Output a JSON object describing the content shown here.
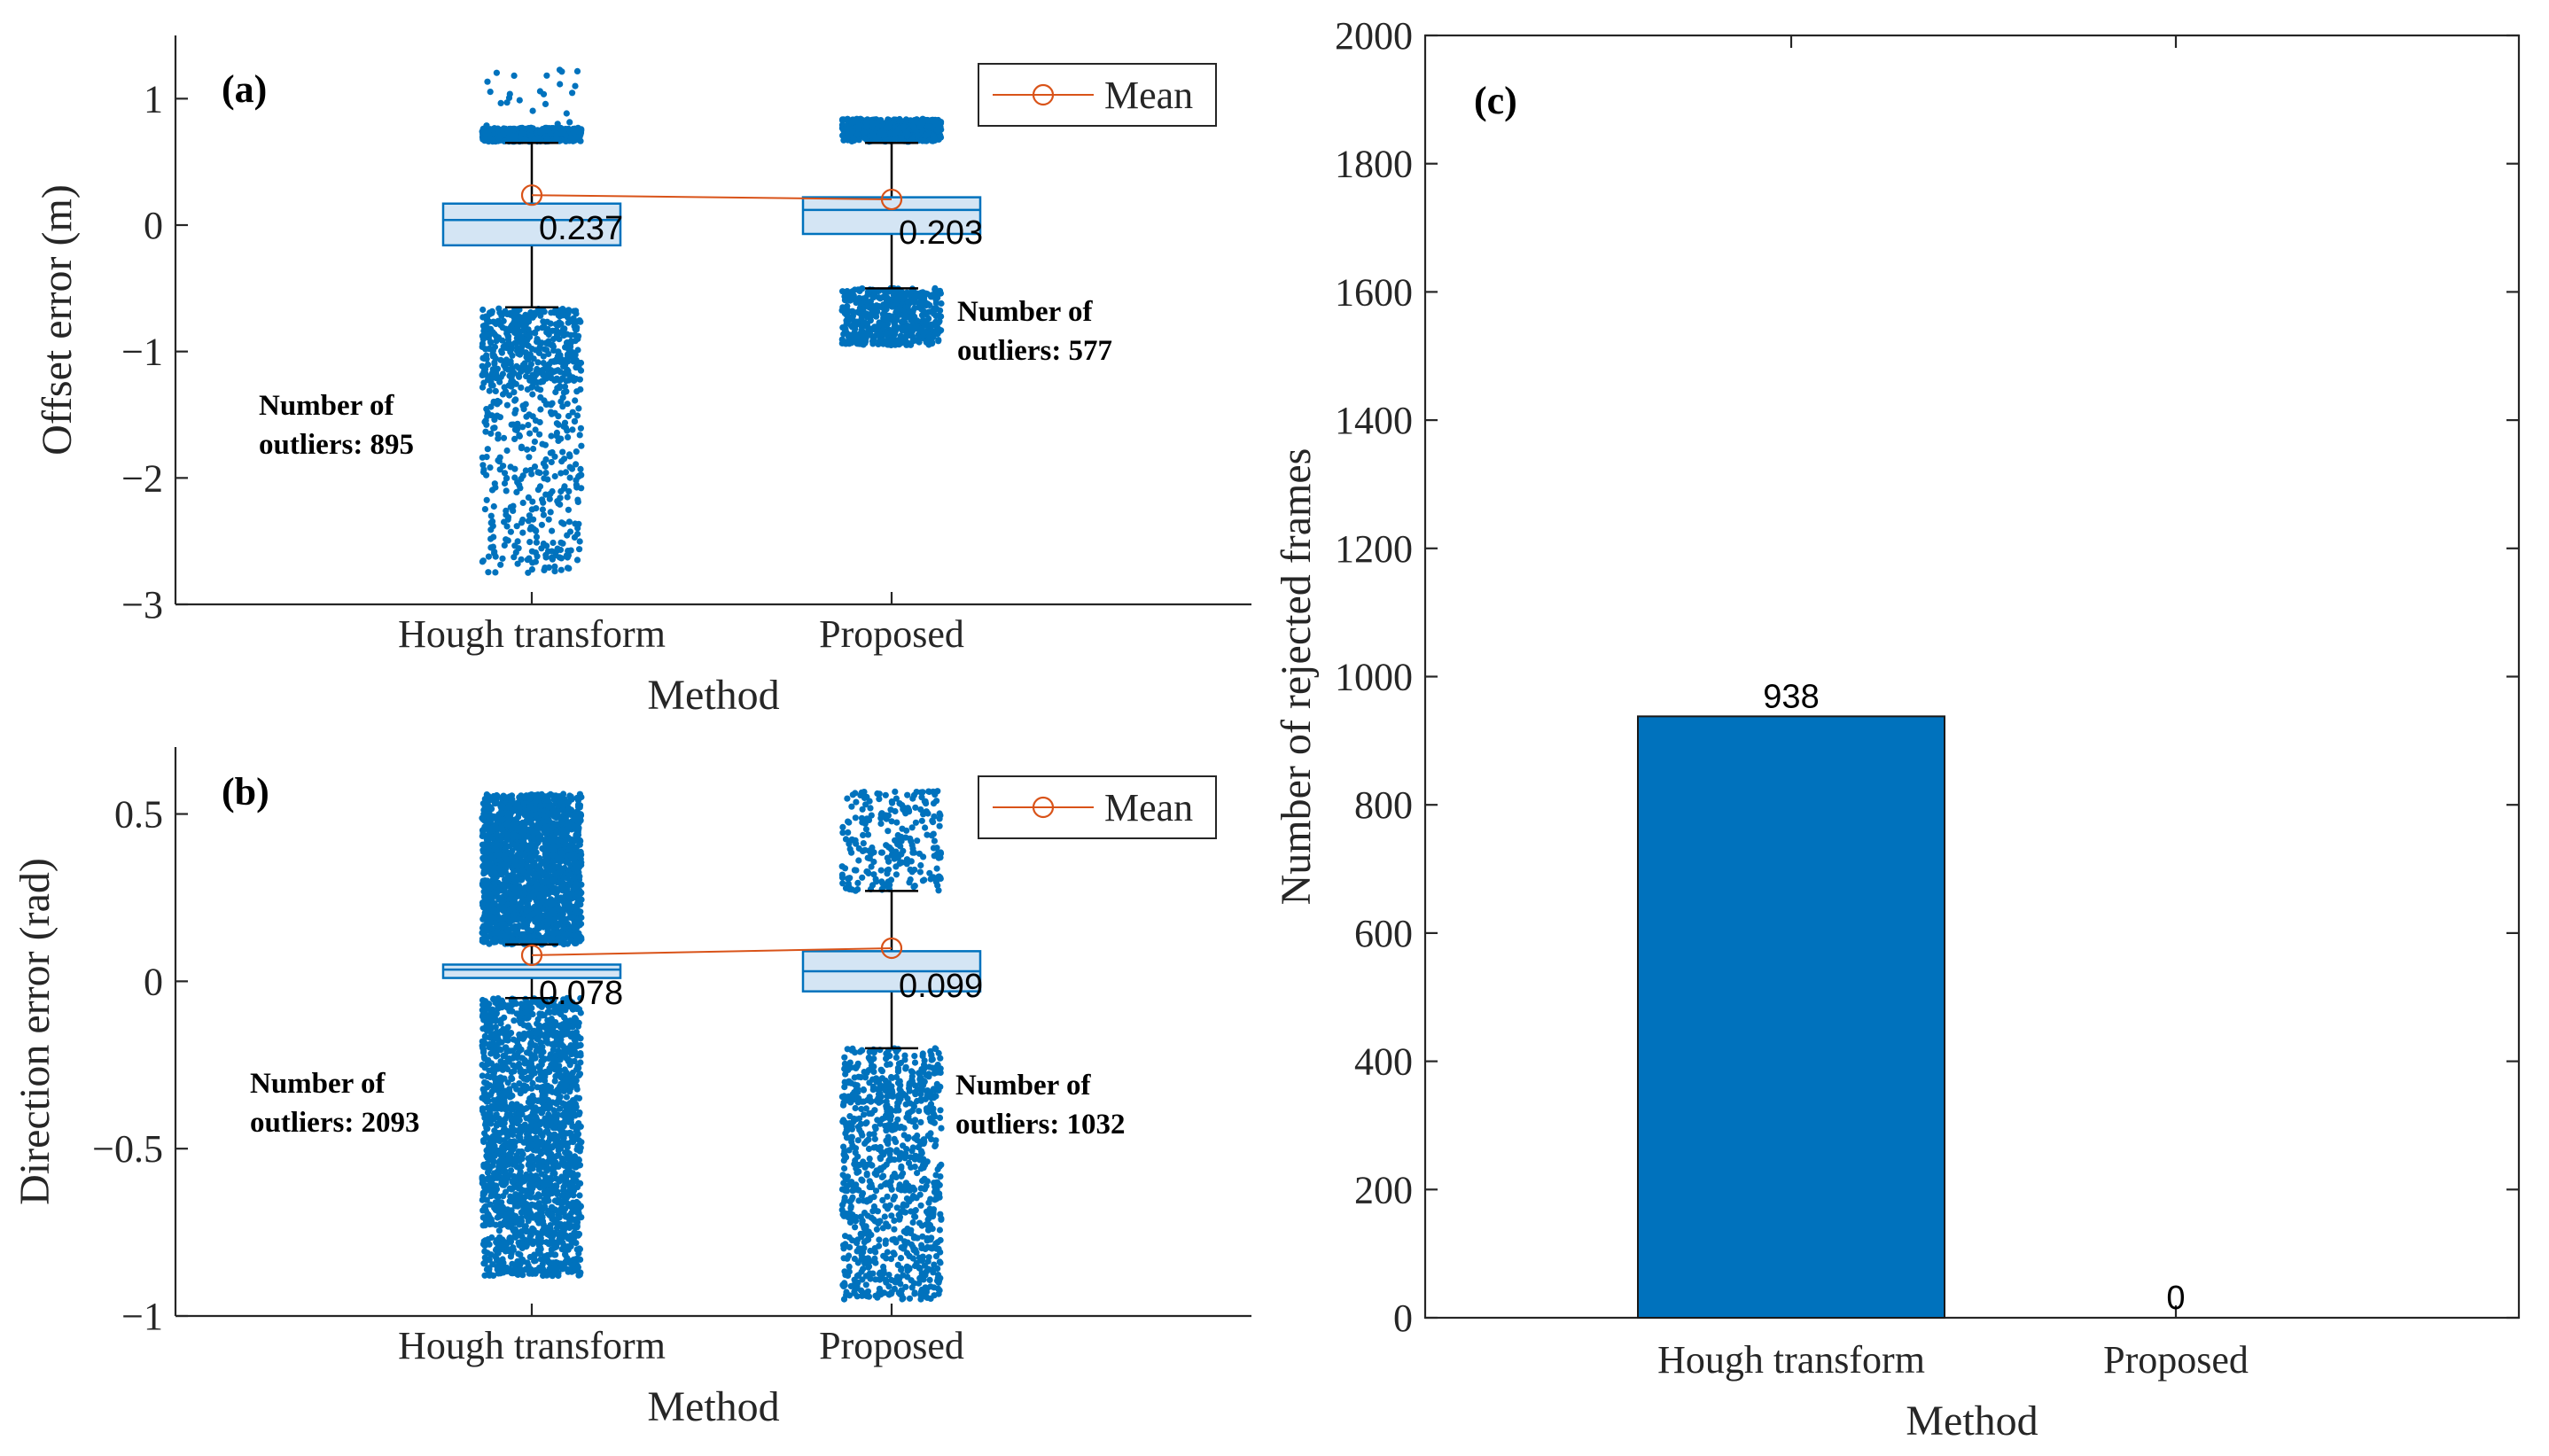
{
  "colors": {
    "point": "#0072BD",
    "box_fill": "#CFE2F3",
    "box_edge": "#0072BD",
    "mean": "#D95319",
    "bar": "#0072BD",
    "axis": "#262626"
  },
  "chart_data": [
    {
      "type": "box",
      "panel_label": "(a)",
      "title": "",
      "xlabel": "Method",
      "ylabel": "Offset error (m)",
      "categories": [
        "Hough transform",
        "Proposed"
      ],
      "ylim": [
        -3,
        1.5
      ],
      "yticks": [
        -3,
        -2,
        -1,
        0,
        1
      ],
      "ytick_labels": [
        "−3",
        "−2",
        "−1",
        "0",
        "1"
      ],
      "legend": {
        "label": "Mean",
        "position": "top-right"
      },
      "series": [
        {
          "name": "Hough transform",
          "box": {
            "lower_whisker": -0.65,
            "q1": -0.16,
            "median": 0.04,
            "q3": 0.17,
            "upper_whisker": 0.65
          },
          "mean": 0.237,
          "mean_label": "0.237",
          "outlier_count": 895,
          "outlier_note": [
            "Number of",
            "outliers: 895"
          ],
          "outlier_ranges": [
            [
              0.66,
              0.77,
              0.55
            ],
            [
              0.78,
              1.23,
              0.03
            ],
            [
              -1.25,
              -0.66,
              0.55
            ],
            [
              -2.75,
              -1.25,
              0.42
            ]
          ]
        },
        {
          "name": "Proposed",
          "box": {
            "lower_whisker": -0.5,
            "q1": -0.07,
            "median": 0.12,
            "q3": 0.22,
            "upper_whisker": 0.65
          },
          "mean": 0.203,
          "mean_label": "0.203",
          "outlier_count": 577,
          "outlier_note": [
            "Number of",
            "outliers: 577"
          ],
          "outlier_ranges": [
            [
              0.66,
              0.84,
              1.0
            ],
            [
              -0.95,
              -0.5,
              1.0
            ]
          ]
        }
      ]
    },
    {
      "type": "box",
      "panel_label": "(b)",
      "title": "",
      "xlabel": "Method",
      "ylabel": "Direction error (rad)",
      "categories": [
        "Hough transform",
        "Proposed"
      ],
      "ylim": [
        -1,
        0.7
      ],
      "yticks": [
        -1,
        -0.5,
        0,
        0.5
      ],
      "ytick_labels": [
        "−1",
        "−0.5",
        "0",
        "0.5"
      ],
      "legend": {
        "label": "Mean",
        "position": "top-right"
      },
      "series": [
        {
          "name": "Hough transform",
          "box": {
            "lower_whisker": -0.05,
            "q1": 0.01,
            "median": 0.035,
            "q3": 0.05,
            "upper_whisker": 0.11
          },
          "mean": 0.078,
          "mean_label": "0.078",
          "outlier_count": 2093,
          "outlier_note": [
            "Number of",
            "outliers: 2093"
          ],
          "outlier_ranges": [
            [
              0.11,
              0.56,
              1.0
            ],
            [
              -0.88,
              -0.05,
              1.0
            ]
          ]
        },
        {
          "name": "Proposed",
          "box": {
            "lower_whisker": -0.2,
            "q1": -0.03,
            "median": 0.03,
            "q3": 0.09,
            "upper_whisker": 0.27
          },
          "mean": 0.099,
          "mean_label": "0.099",
          "outlier_count": 1032,
          "outlier_note": [
            "Number of",
            "outliers: 1032"
          ],
          "outlier_ranges": [
            [
              0.27,
              0.57,
              0.25
            ],
            [
              -0.95,
              -0.2,
              1.0
            ]
          ]
        }
      ]
    },
    {
      "type": "bar",
      "panel_label": "(c)",
      "title": "",
      "xlabel": "Method",
      "ylabel": "Number of rejected frames",
      "categories": [
        "Hough transform",
        "Proposed"
      ],
      "values": [
        938,
        0
      ],
      "value_labels": [
        "938",
        "0"
      ],
      "ylim": [
        0,
        2000
      ],
      "yticks": [
        0,
        200,
        400,
        600,
        800,
        1000,
        1200,
        1400,
        1600,
        1800,
        2000
      ]
    }
  ]
}
